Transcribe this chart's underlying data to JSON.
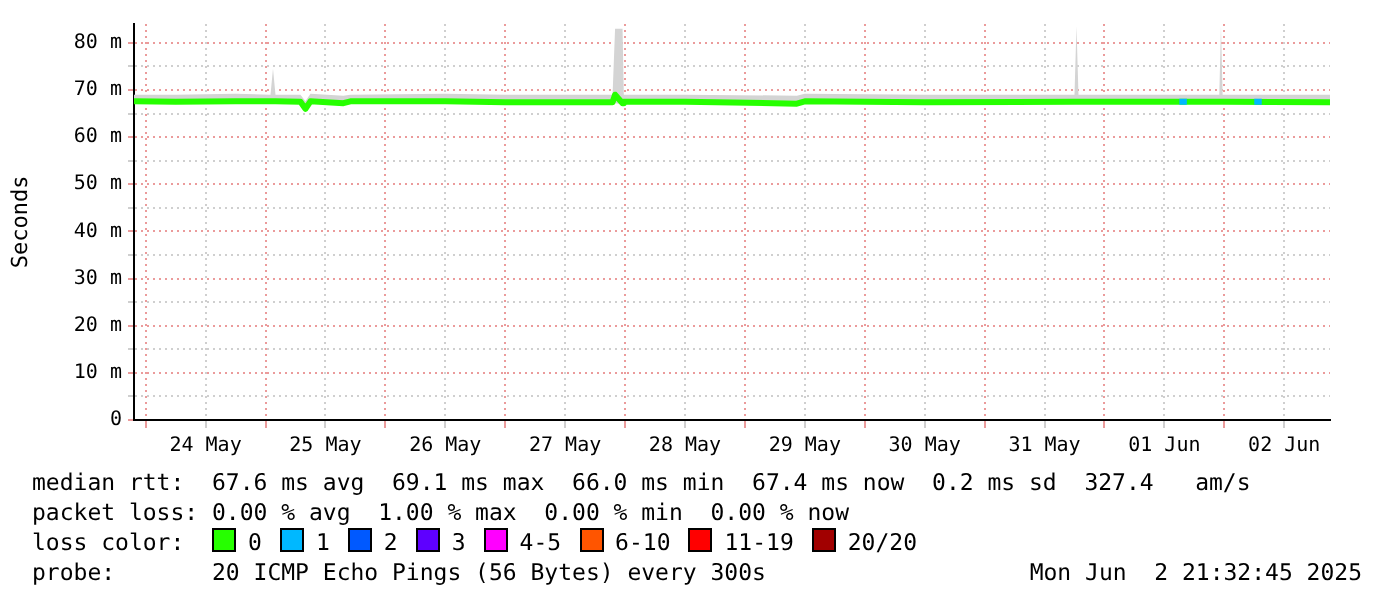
{
  "chart_data": {
    "type": "line",
    "ylabel": "Seconds",
    "legend_title": "loss color:",
    "legend": "bottom",
    "grid": true,
    "marker": "none",
    "line_style": "solid",
    "xlim": [
      "2025-05-23T21:40",
      "2025-06-02T21:10"
    ],
    "xticks": [
      {
        "value": "2025-05-24T00:00",
        "label": null
      },
      {
        "value": "2025-05-24T12:00",
        "label": "24 May"
      },
      {
        "value": "2025-05-25T00:00",
        "label": null
      },
      {
        "value": "2025-05-25T12:00",
        "label": "25 May"
      },
      {
        "value": "2025-05-26T00:00",
        "label": null
      },
      {
        "value": "2025-05-26T12:00",
        "label": "26 May"
      },
      {
        "value": "2025-05-27T00:00",
        "label": null
      },
      {
        "value": "2025-05-27T12:00",
        "label": "27 May"
      },
      {
        "value": "2025-05-28T00:00",
        "label": null
      },
      {
        "value": "2025-05-28T12:00",
        "label": "28 May"
      },
      {
        "value": "2025-05-29T00:00",
        "label": null
      },
      {
        "value": "2025-05-29T12:00",
        "label": "29 May"
      },
      {
        "value": "2025-05-30T00:00",
        "label": null
      },
      {
        "value": "2025-05-30T12:00",
        "label": "30 May"
      },
      {
        "value": "2025-05-31T00:00",
        "label": null
      },
      {
        "value": "2025-05-31T12:00",
        "label": "31 May"
      },
      {
        "value": "2025-06-01T00:00",
        "label": null
      },
      {
        "value": "2025-06-01T12:00",
        "label": "01 Jun"
      },
      {
        "value": "2025-06-02T00:00",
        "label": null
      },
      {
        "value": "2025-06-02T12:00",
        "label": "02 Jun"
      }
    ],
    "ylim": [
      0,
      84
    ],
    "yticks": [
      {
        "value": 0,
        "label": "0"
      },
      {
        "value": 5,
        "label": null
      },
      {
        "value": 10,
        "label": "10 m"
      },
      {
        "value": 15,
        "label": null
      },
      {
        "value": 20,
        "label": "20 m"
      },
      {
        "value": 25,
        "label": null
      },
      {
        "value": 30,
        "label": "30 m"
      },
      {
        "value": 35,
        "label": null
      },
      {
        "value": 40,
        "label": "40 m"
      },
      {
        "value": 45,
        "label": null
      },
      {
        "value": 50,
        "label": "50 m"
      },
      {
        "value": 55,
        "label": null
      },
      {
        "value": 60,
        "label": "60 m"
      },
      {
        "value": 65,
        "label": null
      },
      {
        "value": 70,
        "label": "70 m"
      },
      {
        "value": 75,
        "label": null
      },
      {
        "value": 80,
        "label": "80 m"
      }
    ],
    "series": [
      {
        "name": "0",
        "color": "#26ff00",
        "x": [
          "2025-05-23T21:40",
          "2025-05-24T06:00",
          "2025-05-24T18:00",
          "2025-05-25T01:00",
          "2025-05-25T01:30",
          "2025-05-25T02:00",
          "2025-05-25T07:00",
          "2025-05-25T08:00",
          "2025-05-25T09:00",
          "2025-05-25T15:36",
          "2025-05-25T17:00",
          "2025-05-26T12:00",
          "2025-05-27T00:00",
          "2025-05-27T21:30",
          "2025-05-27T22:00",
          "2025-05-27T23:30",
          "2025-05-27T23:45",
          "2025-05-28T12:00",
          "2025-05-29T10:24",
          "2025-05-29T12:00",
          "2025-05-30T12:00",
          "2025-05-31T18:00",
          "2025-05-31T18:24",
          "2025-05-31T18:48",
          "2025-06-01T23:00",
          "2025-06-01T23:20",
          "2025-06-01T23:40",
          "2025-06-02T21:10"
        ],
        "values": [
          67.6,
          67.5,
          67.6,
          67.6,
          67.6,
          67.6,
          67.5,
          66.0,
          67.6,
          67.2,
          67.6,
          67.6,
          67.4,
          67.4,
          69.0,
          67.2,
          67.5,
          67.5,
          67.1,
          67.6,
          67.4,
          67.5,
          67.5,
          67.5,
          67.5,
          67.5,
          67.5,
          67.4
        ],
        "upper": [
          69.0,
          69.0,
          69.2,
          69.0,
          74.5,
          69.0,
          69.0,
          67.6,
          69.2,
          68.8,
          69.0,
          69.2,
          69.0,
          69.0,
          83.0,
          83.0,
          69.0,
          69.0,
          68.8,
          69.2,
          69.0,
          69.0,
          83.5,
          69.0,
          69.0,
          83.5,
          69.0,
          69.0
        ],
        "lower": [
          67.2,
          67.2,
          67.2,
          67.2,
          67.2,
          67.2,
          67.0,
          65.8,
          67.2,
          67.0,
          67.2,
          67.2,
          67.2,
          67.0,
          67.2,
          67.0,
          67.2,
          67.2,
          66.9,
          67.2,
          67.2,
          67.2,
          67.2,
          67.2,
          67.2,
          67.2,
          67.2,
          67.2
        ]
      },
      {
        "name": "1",
        "color": "#00b8ff",
        "x": [
          "2025-06-01T15:00",
          "2025-06-01T16:30",
          "2025-06-01T20:00",
          "2025-06-02T06:00",
          "2025-06-02T07:30"
        ],
        "values": [
          67.5,
          67.5,
          null,
          67.5,
          67.5
        ]
      },
      {
        "name": "2",
        "color": "#0059ff"
      },
      {
        "name": "3",
        "color": "#5e00ff"
      },
      {
        "name": "4-5",
        "color": "#ff00ff"
      },
      {
        "name": "6-10",
        "color": "#ff5500"
      },
      {
        "name": "11-19",
        "color": "#ff0000"
      },
      {
        "name": "20/20",
        "color": "#a10000"
      }
    ],
    "annotations": [
      "median rtt:  67.6 ms avg  69.1 ms max  66.0 ms min  67.4 ms now  0.2 ms sd  327.4   am/s",
      "packet loss: 0.00 % avg  1.00 % max  0.00 % min  0.00 % now",
      "probe:       20 ICMP Echo Pings (56 Bytes) every 300s",
      "Mon Jun  2 21:32:45 2025"
    ]
  }
}
